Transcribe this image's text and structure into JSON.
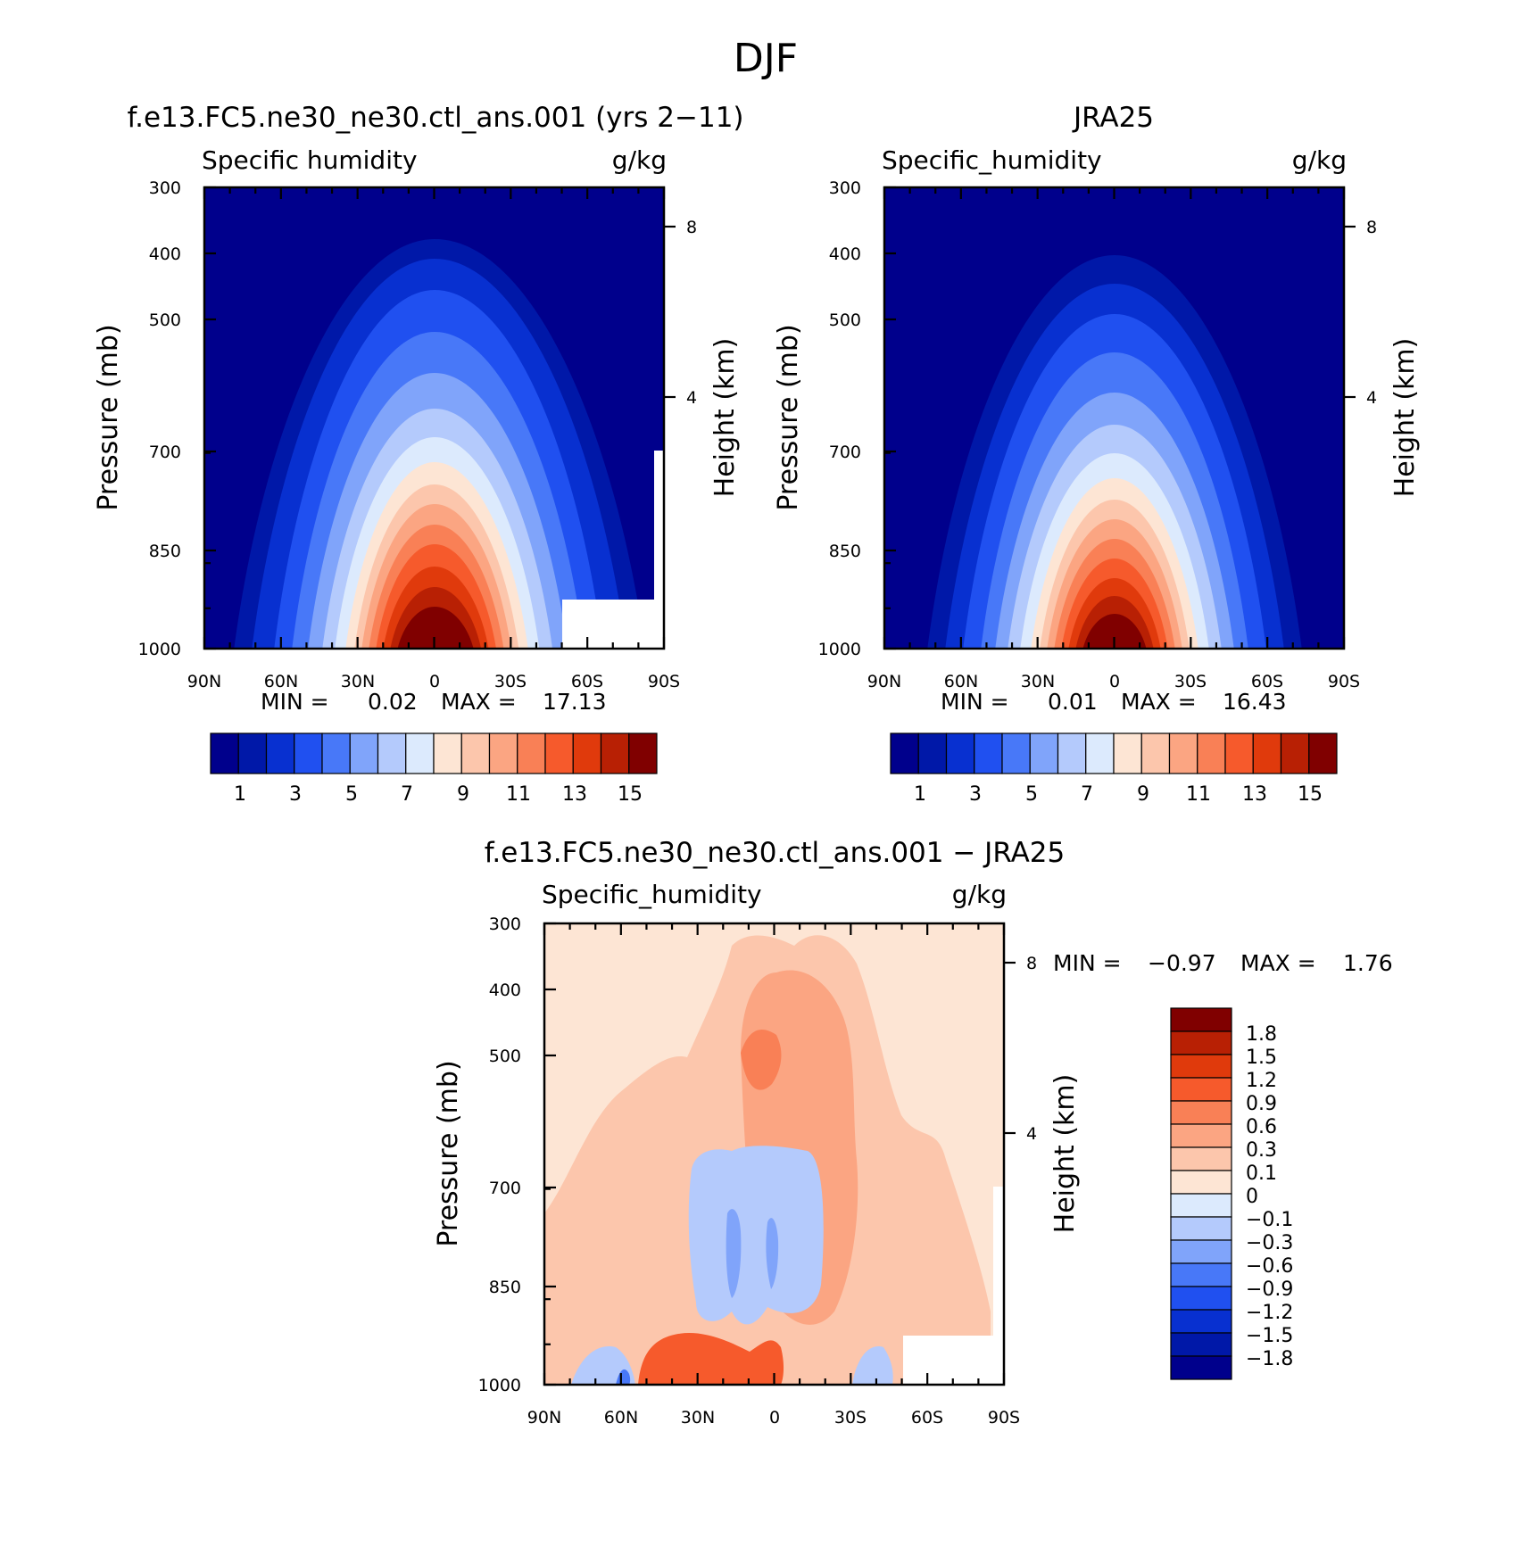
{
  "figure": {
    "title": "DJF"
  },
  "chart_data": [
    {
      "type": "contour",
      "title": "f.e13.FC5.ne30_ne30.ctl_ans.001 (yrs 2−11)",
      "variable": "Specific humidity",
      "units": "g/kg",
      "xlabel": "",
      "ylabel": "Pressure (mb)",
      "y2label": "Height (km)",
      "x_ticks": [
        "90N",
        "60N",
        "30N",
        "0",
        "30S",
        "60S",
        "90S"
      ],
      "y_ticks": [
        "300",
        "400",
        "500",
        "700",
        "850",
        "1000"
      ],
      "y2_ticks": [
        "8",
        "4"
      ],
      "stats": {
        "min_label": "MIN =",
        "min": "0.02",
        "max_label": "MAX =",
        "max": "17.13"
      },
      "colorbar": {
        "orientation": "horizontal",
        "labels": [
          "1",
          "3",
          "5",
          "7",
          "9",
          "11",
          "13",
          "15"
        ],
        "colors": [
          "#00008c",
          "#0018a8",
          "#0830d0",
          "#2050f0",
          "#4878f8",
          "#80a4fa",
          "#b4cafc",
          "#dceafd",
          "#fde5d4",
          "#fcc6ac",
          "#fba582",
          "#f98056",
          "#f65a2c",
          "#e03a0c",
          "#b82004",
          "#800000"
        ]
      },
      "peak": {
        "lat": 0,
        "pressure": 1000,
        "value": 17.13
      }
    },
    {
      "type": "contour",
      "title": "JRA25",
      "variable": "Specific_humidity",
      "units": "g/kg",
      "xlabel": "",
      "ylabel": "Pressure (mb)",
      "y2label": "Height (km)",
      "x_ticks": [
        "90N",
        "60N",
        "30N",
        "0",
        "30S",
        "60S",
        "90S"
      ],
      "y_ticks": [
        "300",
        "400",
        "500",
        "700",
        "850",
        "1000"
      ],
      "y2_ticks": [
        "8",
        "4"
      ],
      "stats": {
        "min_label": "MIN =",
        "min": "0.01",
        "max_label": "MAX =",
        "max": "16.43"
      },
      "colorbar": {
        "orientation": "horizontal",
        "labels": [
          "1",
          "3",
          "5",
          "7",
          "9",
          "11",
          "13",
          "15"
        ],
        "colors": [
          "#00008c",
          "#0018a8",
          "#0830d0",
          "#2050f0",
          "#4878f8",
          "#80a4fa",
          "#b4cafc",
          "#dceafd",
          "#fde5d4",
          "#fcc6ac",
          "#fba582",
          "#f98056",
          "#f65a2c",
          "#e03a0c",
          "#b82004",
          "#800000"
        ]
      },
      "peak": {
        "lat": 0,
        "pressure": 1000,
        "value": 16.43
      }
    },
    {
      "type": "contour",
      "title": "f.e13.FC5.ne30_ne30.ctl_ans.001 − JRA25",
      "variable": "Specific_humidity",
      "units": "g/kg",
      "xlabel": "",
      "ylabel": "Pressure (mb)",
      "y2label": "Height (km)",
      "x_ticks": [
        "90N",
        "60N",
        "30N",
        "0",
        "30S",
        "60S",
        "90S"
      ],
      "y_ticks": [
        "300",
        "400",
        "500",
        "700",
        "850",
        "1000"
      ],
      "y2_ticks": [
        "8",
        "4"
      ],
      "stats": {
        "min_label": "MIN =",
        "min": "−0.97",
        "max_label": "MAX =",
        "max": "1.76"
      },
      "colorbar": {
        "orientation": "vertical",
        "labels": [
          "1.8",
          "1.5",
          "1.2",
          "0.9",
          "0.6",
          "0.3",
          "0.1",
          "0",
          "−0.1",
          "−0.3",
          "−0.6",
          "−0.9",
          "−1.2",
          "−1.5",
          "−1.8"
        ],
        "colors": [
          "#800000",
          "#b82004",
          "#e03a0c",
          "#f65a2c",
          "#f98056",
          "#fba582",
          "#fcc6ac",
          "#fde5d4",
          "#dceafd",
          "#b4cafc",
          "#80a4fa",
          "#4878f8",
          "#2050f0",
          "#0830d0",
          "#0018a8",
          "#00008c"
        ]
      }
    }
  ]
}
